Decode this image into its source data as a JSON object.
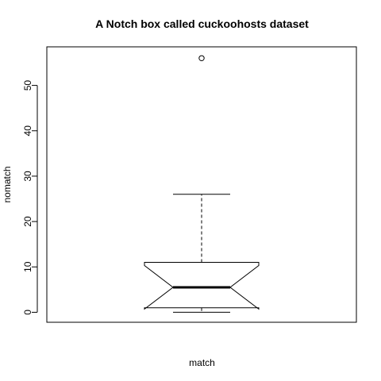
{
  "chart_data": {
    "type": "boxplot",
    "title": "A Notch box called cuckoohosts dataset",
    "xlabel": "match",
    "ylabel": "nomatch",
    "ylim": [
      -2.2,
      58.5
    ],
    "yticks": [
      0,
      10,
      20,
      30,
      40,
      50
    ],
    "notch": true,
    "grid": false,
    "legend": "none",
    "boxes": [
      {
        "whisker_low": 0,
        "q1": 1,
        "median": 5.5,
        "q3": 11,
        "whisker_high": 26,
        "notch_low": 0.7,
        "notch_high": 10.3,
        "outliers": [
          56
        ]
      }
    ]
  }
}
